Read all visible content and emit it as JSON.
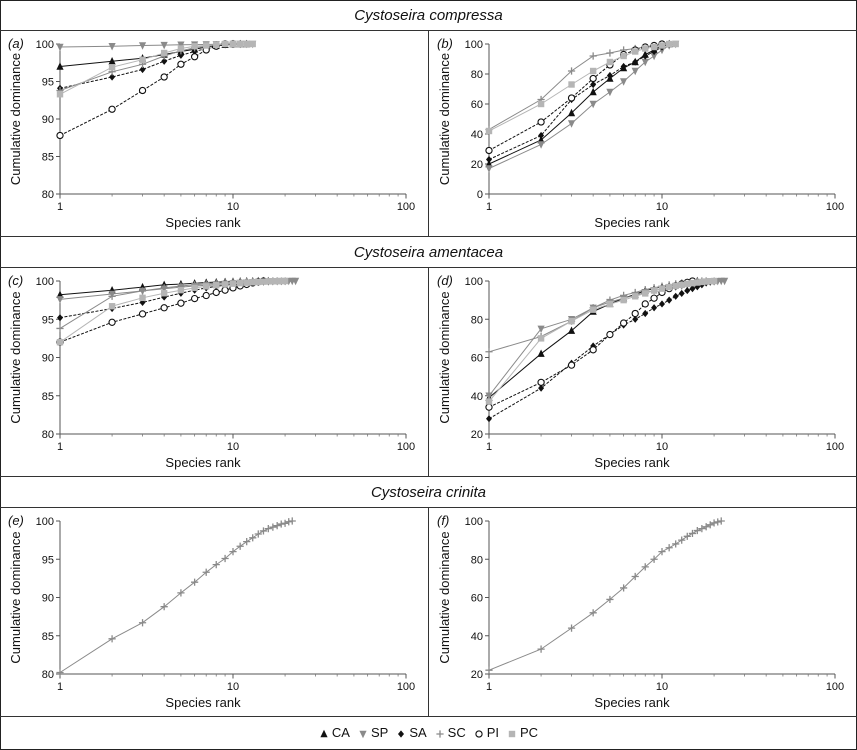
{
  "sections": [
    {
      "title": "Cystoseira compressa"
    },
    {
      "title": "Cystoseira amentacea"
    },
    {
      "title": "Cystoseira crinita"
    }
  ],
  "legend": [
    {
      "code": "CA",
      "marker": "triangle-up",
      "color": "#111111"
    },
    {
      "code": "SP",
      "marker": "triangle-down",
      "color": "#8a8a8a"
    },
    {
      "code": "SA",
      "marker": "diamond",
      "color": "#111111"
    },
    {
      "code": "SC",
      "marker": "plus",
      "color": "#8a8a8a"
    },
    {
      "code": "PI",
      "marker": "circle-open",
      "color": "#111111"
    },
    {
      "code": "PC",
      "marker": "square",
      "color": "#b5b5b5"
    }
  ],
  "chart_data": [
    {
      "panel": "(a)",
      "type": "line",
      "xscale": "log",
      "xlim": [
        1,
        100
      ],
      "ylim": [
        80,
        100
      ],
      "xlabel": "Species rank",
      "ylabel": "Cumulative dominance",
      "xticks": [
        1,
        10,
        100
      ],
      "yticks": [
        80,
        85,
        90,
        95,
        100
      ],
      "series": [
        {
          "name": "CA",
          "x": [
            1,
            2,
            3,
            4,
            5,
            6,
            7,
            8,
            9,
            10,
            11,
            12
          ],
          "y": [
            97,
            97.7,
            98.1,
            98.6,
            99,
            99.3,
            99.6,
            99.8,
            99.9,
            100,
            100,
            100
          ]
        },
        {
          "name": "SP",
          "x": [
            1,
            2,
            3,
            4,
            5,
            6,
            7,
            8,
            9,
            10,
            11,
            12,
            13
          ],
          "y": [
            99.6,
            99.7,
            99.8,
            99.85,
            99.9,
            99.92,
            99.94,
            99.96,
            99.98,
            100,
            100,
            100,
            100
          ]
        },
        {
          "name": "SA",
          "x": [
            1,
            2,
            3,
            4,
            5,
            6,
            7,
            8,
            9,
            10,
            11
          ],
          "y": [
            94.1,
            95.6,
            96.6,
            97.7,
            98.5,
            99,
            99.4,
            99.7,
            99.9,
            100,
            100
          ]
        },
        {
          "name": "SC",
          "x": [
            1,
            2,
            3,
            4,
            5,
            6,
            7,
            8,
            9,
            10
          ],
          "y": [
            93.8,
            96.3,
            97.3,
            98.4,
            99.1,
            99.5,
            99.7,
            99.9,
            100,
            100
          ]
        },
        {
          "name": "PI",
          "x": [
            1,
            2,
            3,
            4,
            5,
            6,
            7,
            8,
            9,
            10
          ],
          "y": [
            87.8,
            91.3,
            93.8,
            95.6,
            97.3,
            98.3,
            99.2,
            99.7,
            100,
            100
          ]
        },
        {
          "name": "PC",
          "x": [
            1,
            2,
            3,
            4,
            5,
            6,
            7,
            8,
            9,
            10,
            11,
            12,
            13
          ],
          "y": [
            93.3,
            96.9,
            97.9,
            98.8,
            99.4,
            99.7,
            99.8,
            99.9,
            100,
            100,
            100,
            100,
            100
          ]
        }
      ]
    },
    {
      "panel": "(b)",
      "type": "line",
      "xscale": "log",
      "xlim": [
        1,
        100
      ],
      "ylim": [
        0,
        100
      ],
      "xlabel": "Species rank",
      "ylabel": "Cumulative dominance",
      "xticks": [
        1,
        10,
        100
      ],
      "yticks": [
        0,
        20,
        40,
        60,
        80,
        100
      ],
      "series": [
        {
          "name": "CA",
          "x": [
            1,
            2,
            3,
            4,
            5,
            6,
            7,
            8,
            9,
            10,
            11
          ],
          "y": [
            20,
            36,
            54,
            68,
            77,
            84,
            88,
            93,
            96,
            99,
            100
          ]
        },
        {
          "name": "SP",
          "x": [
            1,
            2,
            3,
            4,
            5,
            6,
            7,
            8,
            9,
            10,
            11,
            12
          ],
          "y": [
            17,
            33,
            47,
            60,
            68,
            75,
            82,
            88,
            92,
            96,
            99,
            100
          ]
        },
        {
          "name": "SA",
          "x": [
            1,
            2,
            3,
            4,
            5,
            6,
            7,
            8,
            9,
            10,
            11
          ],
          "y": [
            23,
            39,
            63,
            73,
            79,
            85,
            88,
            92,
            95,
            98,
            100
          ]
        },
        {
          "name": "SC",
          "x": [
            1,
            2,
            3,
            4,
            5,
            6,
            7,
            8,
            9,
            10
          ],
          "y": [
            43,
            63,
            82,
            92,
            94,
            96,
            97,
            98,
            99,
            100
          ]
        },
        {
          "name": "PI",
          "x": [
            1,
            2,
            3,
            4,
            5,
            6,
            7,
            8,
            9,
            10
          ],
          "y": [
            29,
            48,
            64,
            77,
            86,
            93,
            96,
            98,
            99,
            100
          ]
        },
        {
          "name": "PC",
          "x": [
            1,
            2,
            3,
            4,
            5,
            6,
            7,
            8,
            9,
            10,
            11,
            12
          ],
          "y": [
            42,
            60,
            73,
            82,
            88,
            92,
            95,
            97,
            98,
            99,
            100,
            100
          ]
        }
      ]
    },
    {
      "panel": "(c)",
      "type": "line",
      "xscale": "log",
      "xlim": [
        1,
        100
      ],
      "ylim": [
        80,
        100
      ],
      "xlabel": "Species rank",
      "ylabel": "Cumulative dominance",
      "xticks": [
        1,
        10,
        100
      ],
      "yticks": [
        80,
        85,
        90,
        95,
        100
      ],
      "series": [
        {
          "name": "CA",
          "x": [
            1,
            2,
            3,
            4,
            5,
            6,
            7,
            8,
            9,
            10,
            11,
            12,
            13,
            14,
            15,
            16
          ],
          "y": [
            98.2,
            98.8,
            99.2,
            99.5,
            99.6,
            99.7,
            99.8,
            99.85,
            99.9,
            99.93,
            99.95,
            99.97,
            99.98,
            100,
            100,
            100
          ]
        },
        {
          "name": "SP",
          "x": [
            1,
            2,
            3,
            4,
            5,
            6,
            7,
            8,
            9,
            10,
            11,
            12,
            13,
            14,
            15,
            16,
            17,
            18,
            19,
            20,
            21,
            22,
            23
          ],
          "y": [
            97.6,
            98.3,
            98.7,
            99,
            99.2,
            99.35,
            99.45,
            99.55,
            99.62,
            99.7,
            99.75,
            99.8,
            99.84,
            99.88,
            99.91,
            99.93,
            99.95,
            99.96,
            99.97,
            99.98,
            99.99,
            100,
            100
          ]
        },
        {
          "name": "SA",
          "x": [
            1,
            2,
            3,
            4,
            5,
            6,
            7,
            8,
            9,
            10,
            11,
            12,
            13,
            14,
            15,
            16,
            17,
            18,
            19,
            20
          ],
          "y": [
            95.2,
            96.4,
            97.2,
            97.9,
            98.4,
            98.8,
            99.1,
            99.3,
            99.45,
            99.55,
            99.65,
            99.75,
            99.8,
            99.85,
            99.9,
            99.93,
            99.96,
            99.98,
            100,
            100
          ]
        },
        {
          "name": "SC",
          "x": [
            1,
            2,
            3,
            4,
            5,
            6,
            7,
            8,
            9,
            10,
            11,
            12,
            13,
            14,
            15,
            16,
            17,
            18
          ],
          "y": [
            93.8,
            98,
            98.7,
            99.1,
            99.35,
            99.5,
            99.62,
            99.72,
            99.8,
            99.85,
            99.9,
            99.93,
            99.95,
            99.97,
            99.98,
            99.99,
            100,
            100
          ]
        },
        {
          "name": "PI",
          "x": [
            1,
            2,
            3,
            4,
            5,
            6,
            7,
            8,
            9,
            10,
            11,
            12,
            13,
            14,
            15
          ],
          "y": [
            92,
            94.6,
            95.7,
            96.5,
            97.1,
            97.7,
            98.1,
            98.5,
            98.8,
            99.1,
            99.35,
            99.55,
            99.75,
            99.9,
            100
          ]
        },
        {
          "name": "PC",
          "x": [
            1,
            2,
            3,
            4,
            5,
            6,
            7,
            8,
            9,
            10,
            11,
            12,
            13,
            14,
            15,
            16,
            17,
            18,
            19,
            20
          ],
          "y": [
            92,
            96.7,
            97.8,
            98.4,
            98.8,
            99.1,
            99.3,
            99.45,
            99.55,
            99.65,
            99.72,
            99.78,
            99.83,
            99.88,
            99.92,
            99.95,
            99.97,
            99.98,
            100,
            100
          ]
        }
      ]
    },
    {
      "panel": "(d)",
      "type": "line",
      "xscale": "log",
      "xlim": [
        1,
        100
      ],
      "ylim": [
        20,
        100
      ],
      "xlabel": "Species rank",
      "ylabel": "Cumulative dominance",
      "xticks": [
        1,
        10,
        100
      ],
      "yticks": [
        20,
        40,
        60,
        80,
        100
      ],
      "series": [
        {
          "name": "CA",
          "x": [
            1,
            2,
            3,
            4,
            5,
            6,
            7,
            8,
            9,
            10,
            11,
            12,
            13,
            14,
            15,
            16
          ],
          "y": [
            39,
            62,
            74,
            84,
            88,
            91,
            93,
            95,
            96,
            97,
            97.5,
            98,
            98.5,
            99,
            99.5,
            100
          ]
        },
        {
          "name": "SP",
          "x": [
            1,
            2,
            3,
            4,
            5,
            6,
            7,
            8,
            9,
            10,
            11,
            12,
            13,
            14,
            15,
            16,
            17,
            18,
            19,
            20,
            21,
            22,
            23
          ],
          "y": [
            40,
            75,
            80,
            86,
            89,
            91,
            92.5,
            94,
            95,
            96,
            96.5,
            97,
            97.5,
            98,
            98.3,
            98.6,
            98.9,
            99.2,
            99.5,
            99.7,
            99.9,
            100,
            100
          ]
        },
        {
          "name": "SA",
          "x": [
            1,
            2,
            3,
            4,
            5,
            6,
            7,
            8,
            9,
            10,
            11,
            12,
            13,
            14,
            15,
            16,
            17,
            18,
            19,
            20
          ],
          "y": [
            28,
            44,
            57,
            66,
            72,
            77,
            80,
            83,
            86,
            88,
            90,
            92,
            93.5,
            95,
            96,
            97,
            98,
            99,
            99.5,
            100
          ]
        },
        {
          "name": "SC",
          "x": [
            1,
            2,
            3,
            4,
            5,
            6,
            7,
            8,
            9,
            10,
            11,
            12,
            13,
            14,
            15,
            16,
            17,
            18
          ],
          "y": [
            63,
            71,
            79,
            86,
            90,
            92.5,
            94,
            95.5,
            96.5,
            97.3,
            98,
            98.5,
            99,
            99.3,
            99.6,
            99.8,
            100,
            100
          ]
        },
        {
          "name": "PI",
          "x": [
            1,
            2,
            3,
            4,
            5,
            6,
            7,
            8,
            9,
            10,
            11,
            12,
            13,
            14,
            15
          ],
          "y": [
            34,
            47,
            56,
            64,
            72,
            78,
            83,
            88,
            91,
            94,
            96,
            97.5,
            98.5,
            99.3,
            100
          ]
        },
        {
          "name": "PC",
          "x": [
            1,
            2,
            3,
            4,
            5,
            6,
            7,
            8,
            9,
            10,
            11,
            12,
            13,
            14,
            15,
            16,
            17,
            18,
            19,
            20
          ],
          "y": [
            37,
            70,
            79,
            85,
            88,
            90,
            92,
            93.5,
            95,
            96,
            96.8,
            97.5,
            98,
            98.5,
            98.9,
            99.2,
            99.5,
            99.7,
            99.9,
            100
          ]
        }
      ]
    },
    {
      "panel": "(e)",
      "type": "line",
      "xscale": "log",
      "xlim": [
        1,
        100
      ],
      "ylim": [
        80,
        100
      ],
      "xlabel": "Species rank",
      "ylabel": "Cumulative dominance",
      "xticks": [
        1,
        10,
        100
      ],
      "yticks": [
        80,
        85,
        90,
        95,
        100
      ],
      "series": [
        {
          "name": "SC",
          "x": [
            1,
            2,
            3,
            4,
            5,
            6,
            7,
            8,
            9,
            10,
            11,
            12,
            13,
            14,
            15,
            16,
            17,
            18,
            19,
            20,
            21,
            22
          ],
          "y": [
            80.2,
            84.6,
            86.7,
            88.8,
            90.6,
            92.0,
            93.3,
            94.3,
            95.1,
            96.0,
            96.7,
            97.3,
            97.8,
            98.3,
            98.7,
            99.0,
            99.2,
            99.4,
            99.6,
            99.7,
            99.9,
            100
          ]
        }
      ]
    },
    {
      "panel": "(f)",
      "type": "line",
      "xscale": "log",
      "xlim": [
        1,
        100
      ],
      "ylim": [
        20,
        100
      ],
      "xlabel": "Species rank",
      "ylabel": "Cumulative dominance",
      "xticks": [
        1,
        10,
        100
      ],
      "yticks": [
        20,
        40,
        60,
        80,
        100
      ],
      "series": [
        {
          "name": "SC",
          "x": [
            1,
            2,
            3,
            4,
            5,
            6,
            7,
            8,
            9,
            10,
            11,
            12,
            13,
            14,
            15,
            16,
            17,
            18,
            19,
            20,
            21,
            22
          ],
          "y": [
            22,
            33,
            44,
            52,
            59,
            65,
            71,
            76,
            80,
            84,
            86,
            88,
            90,
            92,
            93.5,
            95,
            96,
            97,
            98,
            99,
            99.5,
            100
          ]
        }
      ]
    }
  ]
}
